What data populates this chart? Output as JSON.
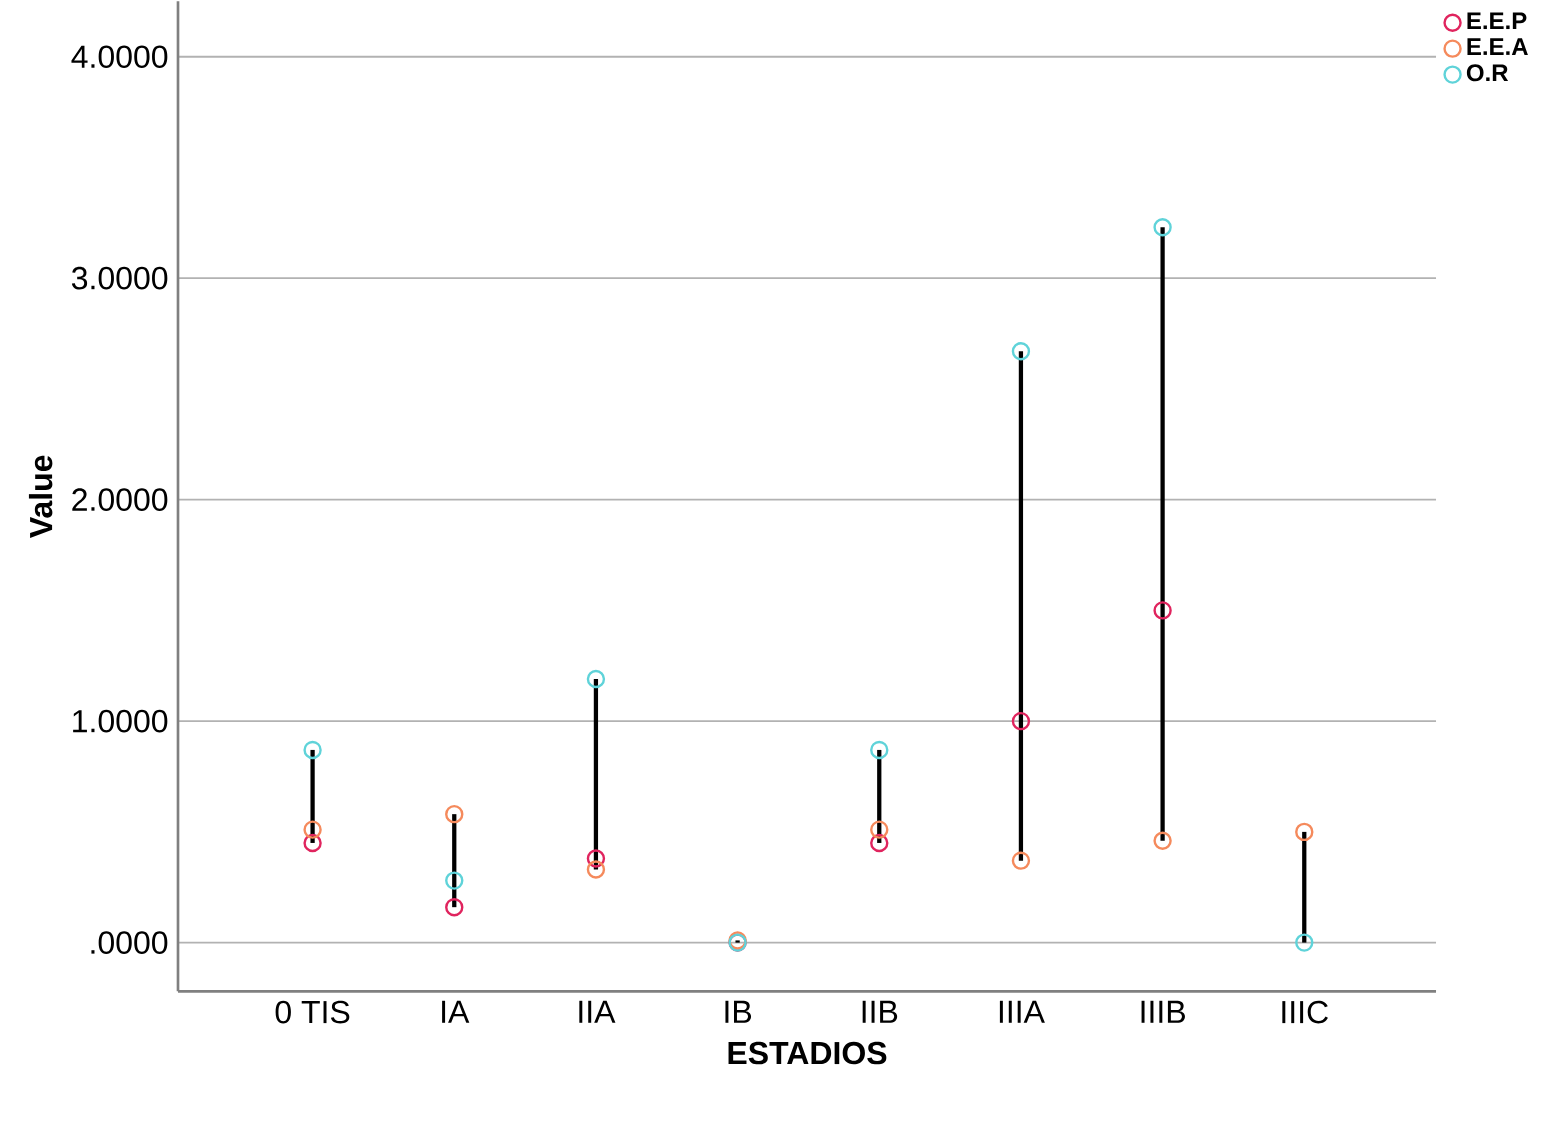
{
  "chart_data": {
    "type": "scatter",
    "xlabel": "ESTADIOS",
    "ylabel": "Value",
    "categories": [
      "0 TIS",
      "IA",
      "IIA",
      "IB",
      "IIB",
      "IIIA",
      "IIIB",
      "IIIC"
    ],
    "series": [
      {
        "name": "E.E.P",
        "color": "#e0245e",
        "values": [
          0.45,
          0.16,
          0.38,
          0.0,
          0.45,
          1.0,
          1.5,
          null
        ]
      },
      {
        "name": "E.E.A",
        "color": "#f58a5c",
        "values": [
          0.51,
          0.58,
          0.33,
          0.01,
          0.51,
          0.37,
          0.46,
          0.5
        ]
      },
      {
        "name": "O.R",
        "color": "#5fd3d9",
        "values": [
          0.87,
          0.28,
          1.19,
          0.0,
          0.87,
          2.67,
          3.23,
          0.0
        ]
      }
    ],
    "ylim": [
      -0.22,
      4.25
    ],
    "yticks": [
      {
        "value": 0,
        "label": ".0000"
      },
      {
        "value": 1,
        "label": "1.0000"
      },
      {
        "value": 2,
        "label": "2.0000"
      },
      {
        "value": 3,
        "label": "3.0000"
      },
      {
        "value": 4,
        "label": "4.0000"
      }
    ],
    "grid": "y",
    "legend": "top right",
    "marker": "circle"
  }
}
